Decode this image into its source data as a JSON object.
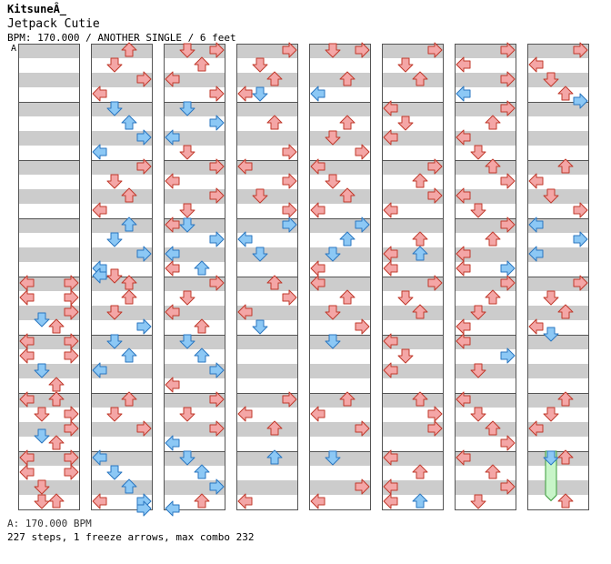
{
  "header": {
    "artist": "KitsuneÂ_",
    "title": "Jetpack Cutie",
    "info": "BPM: 170.000 / ANOTHER SINGLE / 6 feet",
    "bpm_marker": "A"
  },
  "footer": {
    "bpm_legend": "A: 170.000 BPM",
    "stats": "227 steps, 1 freeze arrows, max combo 232"
  },
  "colors": {
    "red_arrow": "#f4a6a6",
    "red_outline": "#c0392b",
    "blue_arrow": "#8cc8f5",
    "blue_outline": "#2a76c0",
    "stripe": "#cccccc",
    "freeze": "#c8f5c8",
    "freeze_outline": "#3a9a3a"
  },
  "chart_data": {
    "type": "step-chart",
    "lanes": [
      "left",
      "down",
      "up",
      "right"
    ],
    "measures_per_column": 8,
    "beats_per_measure": 4,
    "columns": [
      {
        "notes": [
          [
            4.0,
            0,
            "r"
          ],
          [
            4.0,
            3,
            "r"
          ],
          [
            4.25,
            0,
            "r"
          ],
          [
            4.25,
            3,
            "r"
          ],
          [
            4.5,
            3,
            "r"
          ],
          [
            4.625,
            1,
            "b"
          ],
          [
            4.75,
            2,
            "r"
          ],
          [
            5.0,
            0,
            "r"
          ],
          [
            5.0,
            3,
            "r"
          ],
          [
            5.25,
            0,
            "r"
          ],
          [
            5.25,
            3,
            "r"
          ],
          [
            5.5,
            1,
            "b"
          ],
          [
            5.75,
            2,
            "r"
          ],
          [
            6.0,
            0,
            "r"
          ],
          [
            6.0,
            2,
            "r"
          ],
          [
            6.25,
            1,
            "r"
          ],
          [
            6.25,
            3,
            "r"
          ],
          [
            6.5,
            3,
            "r"
          ],
          [
            6.625,
            1,
            "b"
          ],
          [
            6.75,
            2,
            "r"
          ],
          [
            7.0,
            0,
            "r"
          ],
          [
            7.0,
            3,
            "r"
          ],
          [
            7.25,
            0,
            "r"
          ],
          [
            7.25,
            3,
            "r"
          ],
          [
            7.5,
            1,
            "r"
          ],
          [
            7.75,
            1,
            "r"
          ],
          [
            7.75,
            2,
            "r"
          ]
        ]
      },
      {
        "notes": [
          [
            0.0,
            2,
            "r"
          ],
          [
            0.25,
            1,
            "r"
          ],
          [
            0.5,
            3,
            "r"
          ],
          [
            0.75,
            0,
            "r"
          ],
          [
            1.0,
            1,
            "b"
          ],
          [
            1.25,
            2,
            "b"
          ],
          [
            1.5,
            3,
            "b"
          ],
          [
            1.75,
            0,
            "b"
          ],
          [
            2.0,
            3,
            "r"
          ],
          [
            2.25,
            1,
            "r"
          ],
          [
            2.5,
            2,
            "r"
          ],
          [
            2.75,
            0,
            "r"
          ],
          [
            3.0,
            2,
            "b"
          ],
          [
            3.25,
            1,
            "b"
          ],
          [
            3.5,
            3,
            "b"
          ],
          [
            3.75,
            0,
            "b"
          ],
          [
            3.875,
            0,
            "b"
          ],
          [
            3.875,
            1,
            "r"
          ],
          [
            4.0,
            2,
            "r"
          ],
          [
            4.25,
            2,
            "r"
          ],
          [
            4.5,
            1,
            "r"
          ],
          [
            4.75,
            3,
            "b"
          ],
          [
            5.0,
            1,
            "b"
          ],
          [
            5.25,
            2,
            "b"
          ],
          [
            5.5,
            0,
            "b"
          ],
          [
            6.0,
            2,
            "r"
          ],
          [
            6.25,
            1,
            "r"
          ],
          [
            6.5,
            3,
            "r"
          ],
          [
            7.0,
            0,
            "b"
          ],
          [
            7.25,
            1,
            "b"
          ],
          [
            7.5,
            2,
            "b"
          ],
          [
            7.75,
            3,
            "b"
          ],
          [
            7.875,
            3,
            "b"
          ],
          [
            7.75,
            0,
            "r"
          ]
        ]
      },
      {
        "notes": [
          [
            0.0,
            1,
            "r"
          ],
          [
            0.0,
            3,
            "r"
          ],
          [
            0.25,
            2,
            "r"
          ],
          [
            0.5,
            0,
            "r"
          ],
          [
            0.75,
            3,
            "r"
          ],
          [
            1.0,
            1,
            "b"
          ],
          [
            1.25,
            3,
            "b"
          ],
          [
            1.5,
            0,
            "b"
          ],
          [
            1.75,
            1,
            "r"
          ],
          [
            2.0,
            3,
            "r"
          ],
          [
            2.25,
            0,
            "r"
          ],
          [
            2.5,
            3,
            "r"
          ],
          [
            2.75,
            1,
            "r"
          ],
          [
            3.0,
            0,
            "r"
          ],
          [
            3.0,
            1,
            "b"
          ],
          [
            3.25,
            3,
            "b"
          ],
          [
            3.5,
            0,
            "b"
          ],
          [
            3.75,
            0,
            "r"
          ],
          [
            3.75,
            2,
            "b"
          ],
          [
            4.0,
            3,
            "r"
          ],
          [
            4.25,
            1,
            "r"
          ],
          [
            4.5,
            0,
            "r"
          ],
          [
            4.75,
            2,
            "r"
          ],
          [
            5.0,
            1,
            "b"
          ],
          [
            5.25,
            2,
            "b"
          ],
          [
            5.5,
            3,
            "b"
          ],
          [
            5.75,
            0,
            "r"
          ],
          [
            6.0,
            3,
            "r"
          ],
          [
            6.25,
            1,
            "r"
          ],
          [
            6.5,
            3,
            "r"
          ],
          [
            6.75,
            0,
            "b"
          ],
          [
            7.0,
            1,
            "b"
          ],
          [
            7.25,
            2,
            "b"
          ],
          [
            7.5,
            3,
            "b"
          ],
          [
            7.75,
            2,
            "r"
          ],
          [
            7.875,
            0,
            "b"
          ]
        ]
      },
      {
        "notes": [
          [
            0.0,
            3,
            "r"
          ],
          [
            0.25,
            1,
            "r"
          ],
          [
            0.5,
            2,
            "r"
          ],
          [
            0.75,
            0,
            "r"
          ],
          [
            0.75,
            1,
            "b"
          ],
          [
            1.25,
            2,
            "r"
          ],
          [
            1.75,
            3,
            "r"
          ],
          [
            2.0,
            0,
            "r"
          ],
          [
            2.25,
            3,
            "r"
          ],
          [
            2.5,
            1,
            "r"
          ],
          [
            2.75,
            3,
            "r"
          ],
          [
            3.0,
            3,
            "b"
          ],
          [
            3.25,
            0,
            "b"
          ],
          [
            3.5,
            1,
            "b"
          ],
          [
            4.0,
            2,
            "r"
          ],
          [
            4.25,
            3,
            "r"
          ],
          [
            4.5,
            0,
            "r"
          ],
          [
            4.75,
            1,
            "b"
          ],
          [
            6.0,
            3,
            "r"
          ],
          [
            6.25,
            0,
            "r"
          ],
          [
            6.5,
            2,
            "r"
          ],
          [
            7.0,
            2,
            "b"
          ],
          [
            7.75,
            0,
            "r"
          ]
        ]
      },
      {
        "notes": [
          [
            0.0,
            1,
            "r"
          ],
          [
            0.0,
            3,
            "r"
          ],
          [
            0.5,
            2,
            "r"
          ],
          [
            0.75,
            0,
            "b"
          ],
          [
            1.25,
            2,
            "r"
          ],
          [
            1.5,
            1,
            "r"
          ],
          [
            1.75,
            3,
            "r"
          ],
          [
            2.0,
            0,
            "r"
          ],
          [
            2.25,
            1,
            "r"
          ],
          [
            2.5,
            2,
            "r"
          ],
          [
            2.75,
            0,
            "r"
          ],
          [
            3.0,
            3,
            "b"
          ],
          [
            3.25,
            2,
            "b"
          ],
          [
            3.5,
            1,
            "b"
          ],
          [
            3.75,
            0,
            "r"
          ],
          [
            4.0,
            0,
            "r"
          ],
          [
            4.25,
            2,
            "r"
          ],
          [
            4.5,
            1,
            "r"
          ],
          [
            4.75,
            3,
            "r"
          ],
          [
            5.0,
            1,
            "b"
          ],
          [
            6.0,
            2,
            "r"
          ],
          [
            6.25,
            0,
            "r"
          ],
          [
            6.5,
            3,
            "r"
          ],
          [
            7.0,
            1,
            "b"
          ],
          [
            7.5,
            3,
            "r"
          ],
          [
            7.75,
            0,
            "r"
          ]
        ]
      },
      {
        "notes": [
          [
            0.0,
            3,
            "r"
          ],
          [
            0.25,
            1,
            "r"
          ],
          [
            0.5,
            2,
            "r"
          ],
          [
            1.0,
            0,
            "r"
          ],
          [
            1.25,
            1,
            "r"
          ],
          [
            1.5,
            0,
            "r"
          ],
          [
            2.0,
            3,
            "r"
          ],
          [
            2.25,
            2,
            "r"
          ],
          [
            2.5,
            3,
            "r"
          ],
          [
            2.75,
            0,
            "r"
          ],
          [
            3.25,
            2,
            "r"
          ],
          [
            3.5,
            0,
            "r"
          ],
          [
            3.5,
            2,
            "b"
          ],
          [
            3.75,
            0,
            "r"
          ],
          [
            4.0,
            3,
            "r"
          ],
          [
            4.25,
            1,
            "r"
          ],
          [
            4.5,
            2,
            "r"
          ],
          [
            5.0,
            0,
            "r"
          ],
          [
            5.25,
            1,
            "r"
          ],
          [
            5.5,
            0,
            "r"
          ],
          [
            6.0,
            2,
            "r"
          ],
          [
            6.25,
            3,
            "r"
          ],
          [
            6.5,
            3,
            "r"
          ],
          [
            7.0,
            0,
            "r"
          ],
          [
            7.25,
            2,
            "r"
          ],
          [
            7.5,
            0,
            "r"
          ],
          [
            7.75,
            0,
            "r"
          ],
          [
            7.75,
            2,
            "b"
          ]
        ]
      },
      {
        "notes": [
          [
            0.0,
            3,
            "r"
          ],
          [
            0.25,
            0,
            "r"
          ],
          [
            0.5,
            3,
            "r"
          ],
          [
            0.75,
            0,
            "b"
          ],
          [
            1.0,
            3,
            "r"
          ],
          [
            1.25,
            2,
            "r"
          ],
          [
            1.5,
            0,
            "r"
          ],
          [
            1.75,
            1,
            "r"
          ],
          [
            2.0,
            2,
            "r"
          ],
          [
            2.25,
            3,
            "r"
          ],
          [
            2.5,
            0,
            "r"
          ],
          [
            2.75,
            1,
            "r"
          ],
          [
            3.0,
            3,
            "r"
          ],
          [
            3.25,
            2,
            "r"
          ],
          [
            3.5,
            0,
            "r"
          ],
          [
            3.75,
            0,
            "r"
          ],
          [
            3.75,
            3,
            "b"
          ],
          [
            4.0,
            3,
            "r"
          ],
          [
            4.25,
            2,
            "r"
          ],
          [
            4.5,
            1,
            "r"
          ],
          [
            4.75,
            0,
            "r"
          ],
          [
            5.0,
            0,
            "r"
          ],
          [
            5.25,
            3,
            "b"
          ],
          [
            5.5,
            1,
            "r"
          ],
          [
            6.0,
            0,
            "r"
          ],
          [
            6.25,
            1,
            "r"
          ],
          [
            6.5,
            2,
            "r"
          ],
          [
            6.75,
            3,
            "r"
          ],
          [
            7.0,
            0,
            "r"
          ],
          [
            7.25,
            2,
            "r"
          ],
          [
            7.5,
            3,
            "r"
          ],
          [
            7.75,
            1,
            "r"
          ]
        ]
      },
      {
        "notes": [
          [
            0.0,
            3,
            "r"
          ],
          [
            0.25,
            0,
            "r"
          ],
          [
            0.5,
            1,
            "r"
          ],
          [
            0.75,
            2,
            "r"
          ],
          [
            0.875,
            3,
            "b"
          ],
          [
            2.0,
            2,
            "r"
          ],
          [
            2.25,
            0,
            "r"
          ],
          [
            2.5,
            1,
            "r"
          ],
          [
            2.75,
            3,
            "r"
          ],
          [
            3.0,
            0,
            "b"
          ],
          [
            3.25,
            3,
            "b"
          ],
          [
            3.5,
            0,
            "b"
          ],
          [
            4.0,
            3,
            "r"
          ],
          [
            4.25,
            1,
            "r"
          ],
          [
            4.5,
            2,
            "r"
          ],
          [
            4.75,
            0,
            "r"
          ],
          [
            4.875,
            1,
            "b"
          ],
          [
            6.0,
            2,
            "r"
          ],
          [
            6.25,
            1,
            "r"
          ],
          [
            6.5,
            0,
            "r"
          ],
          [
            7.0,
            1,
            "b"
          ],
          [
            7.0,
            2,
            "r"
          ],
          [
            7.75,
            2,
            "r"
          ]
        ],
        "freezes": [
          [
            7.0,
            1,
            7.85
          ]
        ]
      }
    ]
  }
}
